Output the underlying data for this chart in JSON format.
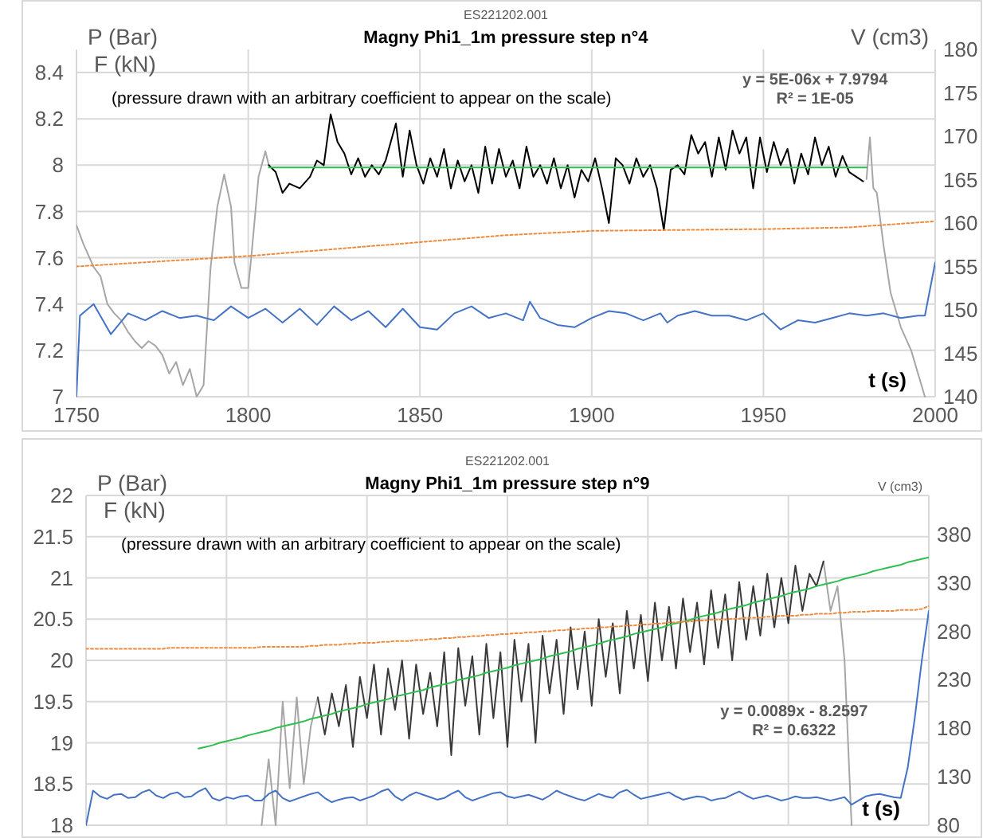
{
  "chart_data": [
    {
      "type": "line",
      "title": "Magny Phi1_1m pressure step n°4",
      "subtitle": "ES221202.001",
      "xlabel": "t (s)",
      "ylabel": "P (Bar)\nF (kN)",
      "y2label": "V (cm3)",
      "xlim": [
        1750,
        2000
      ],
      "xticks": [
        1750,
        1800,
        1850,
        1900,
        1950,
        2000
      ],
      "ylim": [
        7,
        8.5
      ],
      "yticks": [
        7,
        7.2,
        7.4,
        7.6,
        7.8,
        8,
        8.2,
        8.4
      ],
      "y2lim": [
        140,
        180
      ],
      "y2ticks": [
        140,
        145,
        150,
        155,
        160,
        165,
        170,
        175,
        180
      ],
      "grid": true,
      "marker": "none",
      "annotations": [
        "(pressure drawn with an arbitrary coefficient to appear on the scale)",
        "y = 5E-06x + 7.9794",
        "R² = 1E-05"
      ],
      "series": [
        {
          "color": "#a6a6a6",
          "x": [
            1750,
            1752,
            1755,
            1757,
            1759,
            1761,
            1763,
            1765,
            1767,
            1769,
            1771,
            1773,
            1775,
            1777,
            1779,
            1781,
            1783,
            1785,
            1787,
            1789,
            1791,
            1793,
            1795,
            1796,
            1798,
            1800,
            1801,
            1803,
            1805,
            1806,
            1900,
            1980,
            1981,
            1982,
            1983,
            1985,
            1987,
            1990,
            1993,
            1996,
            1997
          ],
          "values": [
            7.74,
            7.66,
            7.56,
            7.52,
            7.4,
            7.36,
            7.33,
            7.28,
            7.24,
            7.21,
            7.24,
            7.22,
            7.18,
            7.1,
            7.15,
            7.05,
            7.12,
            7,
            7.05,
            7.55,
            7.82,
            7.96,
            7.82,
            7.58,
            7.47,
            7.47,
            7.62,
            7.95,
            8.06,
            8,
            null,
            7.94,
            8.12,
            7.9,
            7.88,
            7.65,
            7.45,
            7.3,
            7.2,
            7.05,
            7
          ]
        },
        {
          "color": "#000000",
          "x": [
            1806,
            1808,
            1810,
            1812,
            1815,
            1818,
            1820,
            1822,
            1824,
            1826,
            1828,
            1830,
            1832,
            1834,
            1836,
            1838,
            1840,
            1843,
            1845,
            1847,
            1849,
            1851,
            1853,
            1855,
            1857,
            1859,
            1861,
            1863,
            1865,
            1867,
            1869,
            1871,
            1873,
            1875,
            1877,
            1879,
            1881,
            1883,
            1885,
            1887,
            1889,
            1891,
            1893,
            1895,
            1897,
            1899,
            1901,
            1903,
            1905,
            1907,
            1909,
            1911,
            1913,
            1915,
            1917,
            1919,
            1921,
            1923,
            1925,
            1927,
            1929,
            1931,
            1933,
            1935,
            1937,
            1939,
            1941,
            1943,
            1945,
            1947,
            1949,
            1951,
            1953,
            1955,
            1957,
            1959,
            1961,
            1963,
            1965,
            1967,
            1969,
            1971,
            1973,
            1975,
            1977,
            1979
          ],
          "values": [
            8,
            7.97,
            7.88,
            7.92,
            7.9,
            7.95,
            8.02,
            8,
            8.22,
            8.1,
            8.05,
            7.96,
            8.03,
            7.95,
            8,
            7.96,
            8.02,
            8.18,
            7.95,
            8.15,
            8,
            7.92,
            8.03,
            7.95,
            8.07,
            7.9,
            8.02,
            7.93,
            8,
            7.88,
            8.08,
            7.92,
            8.07,
            7.95,
            8.02,
            7.9,
            8.08,
            7.95,
            8,
            7.92,
            8.03,
            7.9,
            8,
            7.86,
            7.98,
            7.93,
            8.03,
            7.9,
            7.75,
            8.03,
            8,
            7.92,
            8.03,
            7.95,
            8,
            7.9,
            7.72,
            7.98,
            8,
            7.96,
            8.13,
            8.05,
            8.1,
            7.95,
            8.12,
            7.98,
            8.15,
            8.05,
            8.12,
            7.9,
            8.12,
            7.97,
            8.1,
            8,
            8.07,
            7.92,
            8.05,
            7.96,
            8.12,
            8,
            8.08,
            7.95,
            8.04,
            7.97,
            7.95,
            7.93
          ]
        },
        {
          "color": "#2fbf4f",
          "x": [
            1806,
            1980
          ],
          "values": [
            7.99,
            7.99
          ]
        },
        {
          "color": "#f08a3c",
          "axis": "y2",
          "line_style": "dotted",
          "x": [
            1750,
            1775,
            1800,
            1825,
            1850,
            1875,
            1900,
            1925,
            1950,
            1975,
            2000
          ],
          "values": [
            155,
            155.6,
            156.2,
            157,
            157.8,
            158.6,
            159.1,
            159.2,
            159.3,
            159.5,
            160.2
          ]
        },
        {
          "color": "#4472c4",
          "x": [
            1750,
            1751,
            1755,
            1760,
            1765,
            1770,
            1775,
            1780,
            1785,
            1790,
            1795,
            1800,
            1805,
            1810,
            1815,
            1820,
            1825,
            1830,
            1835,
            1840,
            1845,
            1850,
            1855,
            1860,
            1865,
            1870,
            1875,
            1880,
            1882,
            1885,
            1890,
            1895,
            1900,
            1905,
            1910,
            1915,
            1920,
            1922,
            1925,
            1930,
            1935,
            1940,
            1945,
            1950,
            1955,
            1960,
            1965,
            1970,
            1975,
            1980,
            1985,
            1990,
            1995,
            1997,
            2000
          ],
          "values": [
            7,
            7.35,
            7.4,
            7.27,
            7.36,
            7.33,
            7.37,
            7.34,
            7.35,
            7.33,
            7.39,
            7.34,
            7.38,
            7.32,
            7.38,
            7.31,
            7.39,
            7.33,
            7.37,
            7.3,
            7.38,
            7.3,
            7.29,
            7.36,
            7.39,
            7.34,
            7.36,
            7.33,
            7.41,
            7.34,
            7.31,
            7.3,
            7.34,
            7.37,
            7.36,
            7.33,
            7.36,
            7.32,
            7.35,
            7.37,
            7.35,
            7.35,
            7.33,
            7.36,
            7.29,
            7.33,
            7.32,
            7.34,
            7.36,
            7.35,
            7.36,
            7.34,
            7.35,
            7.35,
            7.58
          ]
        }
      ]
    },
    {
      "type": "line",
      "title": "Magny Phi1_1m pressure step n°9",
      "subtitle": "ES221202.001",
      "xlabel": "t (s)",
      "ylabel": "P (Bar)\nF (kN)",
      "y2label": "V (cm3)",
      "categories": [
        null,
        null,
        null,
        null,
        null,
        null,
        null,
        null,
        null,
        null,
        null,
        null,
        null,
        null,
        null,
        null,
        null,
        null,
        null,
        null,
        null,
        null,
        null,
        null,
        null,
        null,
        null,
        null,
        null,
        null,
        null,
        null,
        null,
        null,
        null,
        null,
        null,
        null,
        null,
        null,
        null,
        null,
        null,
        null,
        null,
        null,
        null,
        null,
        null,
        null,
        null,
        null,
        null,
        null,
        null,
        null,
        null,
        null,
        null,
        null,
        null,
        null,
        null,
        null,
        null,
        null,
        null,
        null,
        null,
        null,
        null,
        null,
        null,
        null,
        null,
        null,
        null,
        null,
        null,
        null,
        null,
        null,
        null,
        null,
        null,
        null,
        null,
        null,
        null,
        null,
        null,
        null,
        null,
        null,
        null,
        null,
        null,
        null,
        null,
        null,
        null,
        null,
        null,
        null,
        null,
        null,
        null,
        null,
        null,
        null,
        null,
        null,
        null,
        null,
        null,
        null,
        null,
        null,
        null,
        null,
        null
      ],
      "ylim": [
        18,
        22
      ],
      "yticks": [
        18,
        18.5,
        19,
        19.5,
        20,
        20.5,
        21,
        21.5,
        22
      ],
      "y2lim": [
        80,
        420
      ],
      "y2ticks": [
        80,
        130,
        180,
        230,
        280,
        330,
        380
      ],
      "grid": true,
      "marker": "none",
      "annotations": [
        "(pressure drawn with an arbitrary coefficient to appear on the scale)",
        "y = 0.0089x - 8.2597",
        "R² = 0.6322"
      ],
      "series": [
        {
          "color": "#a6a6a6",
          "values": [
            null,
            null,
            null,
            null,
            null,
            null,
            null,
            null,
            null,
            null,
            null,
            null,
            null,
            null,
            null,
            null,
            null,
            null,
            null,
            null,
            null,
            null,
            null,
            null,
            null,
            18,
            18.8,
            18,
            19.5,
            18.45,
            19.55,
            18.5,
            19.2,
            19.55,
            null,
            null,
            null,
            null,
            null,
            null,
            null,
            null,
            null,
            null,
            null,
            null,
            null,
            null,
            null,
            null,
            null,
            null,
            null,
            null,
            null,
            null,
            null,
            null,
            null,
            null,
            null,
            null,
            null,
            null,
            null,
            null,
            null,
            null,
            null,
            null,
            null,
            null,
            null,
            null,
            null,
            null,
            null,
            null,
            null,
            null,
            null,
            null,
            null,
            null,
            null,
            null,
            null,
            null,
            null,
            null,
            null,
            null,
            null,
            null,
            null,
            null,
            null,
            null,
            null,
            null,
            null,
            null,
            null,
            null,
            null,
            21.2,
            20.6,
            20.9,
            20,
            18,
            null,
            null,
            null,
            null,
            null,
            null,
            null,
            null,
            null,
            null,
            null
          ]
        },
        {
          "color": "#3a3a3a",
          "values": [
            null,
            null,
            null,
            null,
            null,
            null,
            null,
            null,
            null,
            null,
            null,
            null,
            null,
            null,
            null,
            null,
            null,
            null,
            null,
            null,
            null,
            null,
            null,
            null,
            null,
            null,
            null,
            null,
            null,
            null,
            null,
            null,
            null,
            19.55,
            19.1,
            19.6,
            19.2,
            19.7,
            18.95,
            19.8,
            19.3,
            19.95,
            19.1,
            19.9,
            19.4,
            20,
            19.05,
            19.95,
            19.35,
            19.85,
            19.2,
            20.1,
            18.85,
            20.15,
            19.45,
            20.05,
            19.1,
            20.2,
            19.3,
            20.1,
            18.95,
            20.25,
            19.5,
            20.2,
            19,
            20.3,
            19.6,
            20.25,
            19.35,
            20.4,
            19.65,
            20.35,
            19.45,
            20.5,
            19.8,
            20.45,
            19.6,
            20.6,
            19.9,
            20.55,
            19.75,
            20.7,
            20,
            20.65,
            19.9,
            20.75,
            20.1,
            20.7,
            19.95,
            20.85,
            20.15,
            20.8,
            20,
            20.95,
            20.25,
            20.9,
            20.3,
            21.05,
            20.4,
            21,
            20.45,
            21.15,
            20.6,
            21.05,
            20.9,
            21.2,
            null,
            null,
            null,
            null,
            null,
            null,
            null,
            null,
            null,
            null,
            null,
            null,
            null,
            null,
            null
          ]
        },
        {
          "color": "#2fbf4f",
          "values": [
            null,
            null,
            null,
            null,
            null,
            null,
            null,
            null,
            null,
            null,
            null,
            null,
            null,
            null,
            null,
            null,
            18.93,
            18.95,
            18.97,
            19,
            19.02,
            19.04,
            19.06,
            19.09,
            19.11,
            19.13,
            19.15,
            19.18,
            19.2,
            19.22,
            19.24,
            19.26,
            19.29,
            19.31,
            19.33,
            19.35,
            19.38,
            19.4,
            19.42,
            19.44,
            19.47,
            19.49,
            19.51,
            19.53,
            19.56,
            19.58,
            19.6,
            19.62,
            19.64,
            19.67,
            19.69,
            19.71,
            19.73,
            19.76,
            19.78,
            19.8,
            19.82,
            19.85,
            19.87,
            19.89,
            19.91,
            19.94,
            19.96,
            19.98,
            20,
            20.02,
            20.05,
            20.07,
            20.09,
            20.11,
            20.14,
            20.16,
            20.18,
            20.2,
            20.23,
            20.25,
            20.27,
            20.29,
            20.32,
            20.34,
            20.36,
            20.38,
            20.4,
            20.43,
            20.45,
            20.47,
            20.49,
            20.52,
            20.54,
            20.56,
            20.58,
            20.61,
            20.63,
            20.65,
            20.67,
            20.7,
            20.72,
            20.74,
            20.76,
            20.78,
            20.81,
            20.83,
            20.85,
            20.87,
            20.9,
            20.92,
            20.94,
            20.96,
            20.99,
            21.01,
            21.03,
            21.05,
            21.08,
            21.1,
            21.12,
            21.14,
            21.16,
            21.19,
            21.21,
            21.23,
            21.25
          ]
        },
        {
          "color": "#f08a3c",
          "axis": "y2",
          "line_style": "dotted",
          "values": [
            262,
            262,
            262,
            262,
            262,
            262,
            262,
            262,
            262,
            262,
            262,
            262,
            263,
            263,
            263,
            263,
            263,
            263,
            263,
            263,
            263,
            263,
            263,
            263,
            263,
            264,
            264,
            264,
            264,
            264,
            264,
            264,
            265,
            265,
            266,
            266,
            266,
            267,
            267,
            268,
            268,
            268,
            269,
            269,
            270,
            270,
            270,
            271,
            271,
            272,
            272,
            273,
            273,
            274,
            274,
            275,
            275,
            276,
            276,
            277,
            277,
            278,
            278,
            279,
            279,
            280,
            280,
            281,
            281,
            282,
            282,
            283,
            283,
            284,
            284,
            285,
            285,
            286,
            286,
            287,
            287,
            288,
            288,
            289,
            289,
            290,
            290,
            291,
            291,
            292,
            292,
            292,
            293,
            293,
            294,
            294,
            294,
            295,
            295,
            296,
            296,
            296,
            297,
            297,
            298,
            298,
            298,
            299,
            299,
            300,
            300,
            300,
            301,
            301,
            301,
            301,
            302,
            302,
            302,
            303,
            306
          ]
        },
        {
          "color": "#4472c4",
          "values": [
            18,
            18.42,
            18.35,
            18.32,
            18.37,
            18.38,
            18.33,
            18.34,
            18.4,
            18.43,
            18.36,
            18.33,
            18.38,
            18.4,
            18.34,
            18.35,
            18.41,
            18.45,
            18.33,
            18.3,
            18.34,
            18.32,
            18.35,
            18.36,
            18.3,
            18.3,
            18.38,
            18.42,
            18.33,
            18.29,
            18.32,
            18.35,
            18.38,
            18.4,
            18.33,
            18.28,
            18.31,
            18.33,
            18.34,
            18.3,
            18.33,
            18.36,
            18.41,
            18.44,
            18.35,
            18.3,
            18.36,
            18.4,
            18.37,
            18.34,
            18.31,
            18.33,
            18.38,
            18.42,
            18.34,
            18.3,
            18.33,
            18.36,
            18.39,
            18.4,
            18.35,
            18.33,
            18.35,
            18.37,
            18.34,
            18.31,
            18.36,
            18.42,
            18.38,
            18.35,
            18.32,
            18.3,
            18.34,
            18.38,
            18.35,
            18.33,
            18.4,
            18.43,
            18.37,
            18.32,
            18.34,
            18.36,
            18.38,
            18.4,
            18.35,
            18.31,
            18.33,
            18.35,
            18.34,
            18.3,
            18.32,
            18.33,
            18.37,
            18.41,
            18.36,
            18.32,
            18.34,
            18.36,
            18.33,
            18.3,
            18.32,
            18.35,
            18.33,
            18.33,
            18.34,
            18.32,
            18.3,
            18.32,
            18.34,
            18.25,
            18.3,
            18.35,
            18.37,
            18.38,
            18.36,
            18.34,
            18.33,
            18.7,
            19.3,
            20,
            20.6
          ]
        }
      ]
    }
  ]
}
